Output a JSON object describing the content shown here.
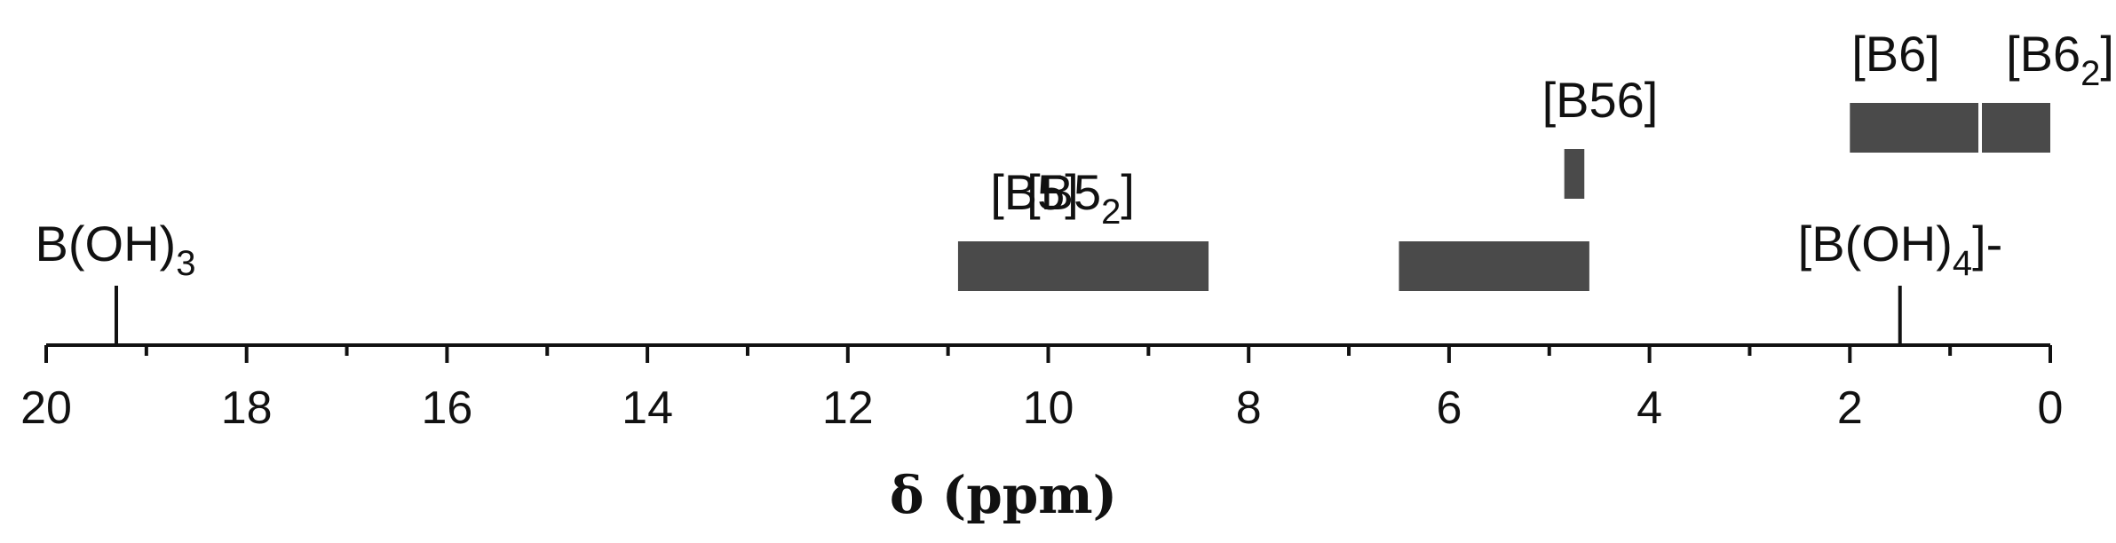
{
  "chart_data": {
    "type": "range",
    "xlabel": "δ (ppm)",
    "xlim": [
      20,
      0
    ],
    "x_reversed": true,
    "tick_values": [
      20,
      18,
      16,
      14,
      12,
      10,
      8,
      6,
      4,
      2,
      0
    ],
    "tick_labels": [
      "20",
      "18",
      "16",
      "14",
      "12",
      "10",
      "8",
      "6",
      "4",
      "2",
      "0"
    ],
    "minor_ticks": [
      19,
      17,
      15,
      13,
      11,
      9,
      7,
      5,
      3,
      1
    ],
    "bar_color": "#4a4a4a",
    "ranges": [
      {
        "label": "[B5",
        "sub": "2",
        "sup": "]",
        "from": 10.9,
        "to": 8.4,
        "row": 1
      },
      {
        "label": "[B5]",
        "sub": "",
        "sup": "",
        "from": 6.5,
        "to": 4.6,
        "row": 1
      },
      {
        "label": "[B56]",
        "sub": "",
        "sup": "",
        "from": 4.85,
        "to": 4.65,
        "row": 2
      },
      {
        "label": "[B6]",
        "sub": "",
        "sup": "",
        "from": 2.0,
        "to": 0.7,
        "row": 3
      },
      {
        "label": "[B6",
        "sub": "2",
        "sup": "]",
        "from": 0.7,
        "to": 0.0,
        "row": 3
      }
    ],
    "lines": [
      {
        "label": "B(OH)",
        "sub": "3",
        "sup": "",
        "x": 19.3
      },
      {
        "label": "[B(OH)",
        "sub": "4",
        "sup": "]-",
        "x": 1.5
      }
    ]
  }
}
